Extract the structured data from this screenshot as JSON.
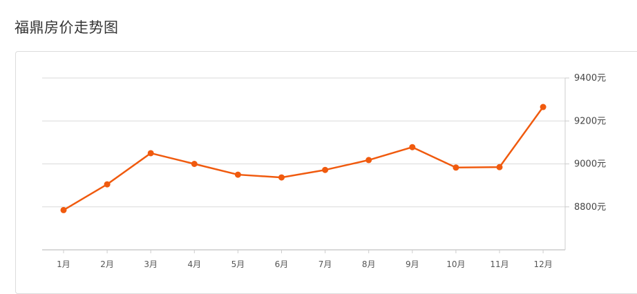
{
  "page": {
    "title": "福鼎房价走势图"
  },
  "chart_data": {
    "type": "line",
    "title": "",
    "categories": [
      "1月",
      "2月",
      "3月",
      "4月",
      "5月",
      "6月",
      "7月",
      "8月",
      "9月",
      "10月",
      "11月",
      "12月"
    ],
    "series": [
      {
        "values": [
          8785,
          8905,
          9050,
          9000,
          8950,
          8937,
          8972,
          9018,
          9078,
          8983,
          8985,
          9265
        ]
      }
    ],
    "y_ticks": [
      8800,
      9000,
      9200,
      9400
    ],
    "y_tick_labels": [
      "8800元",
      "9000元",
      "9200元",
      "9400元"
    ],
    "ylim": [
      8600,
      9400
    ],
    "y_axis_side": "right",
    "grid": true,
    "line_color": "#f05a0e",
    "grid_color": "#d9d9d9"
  }
}
